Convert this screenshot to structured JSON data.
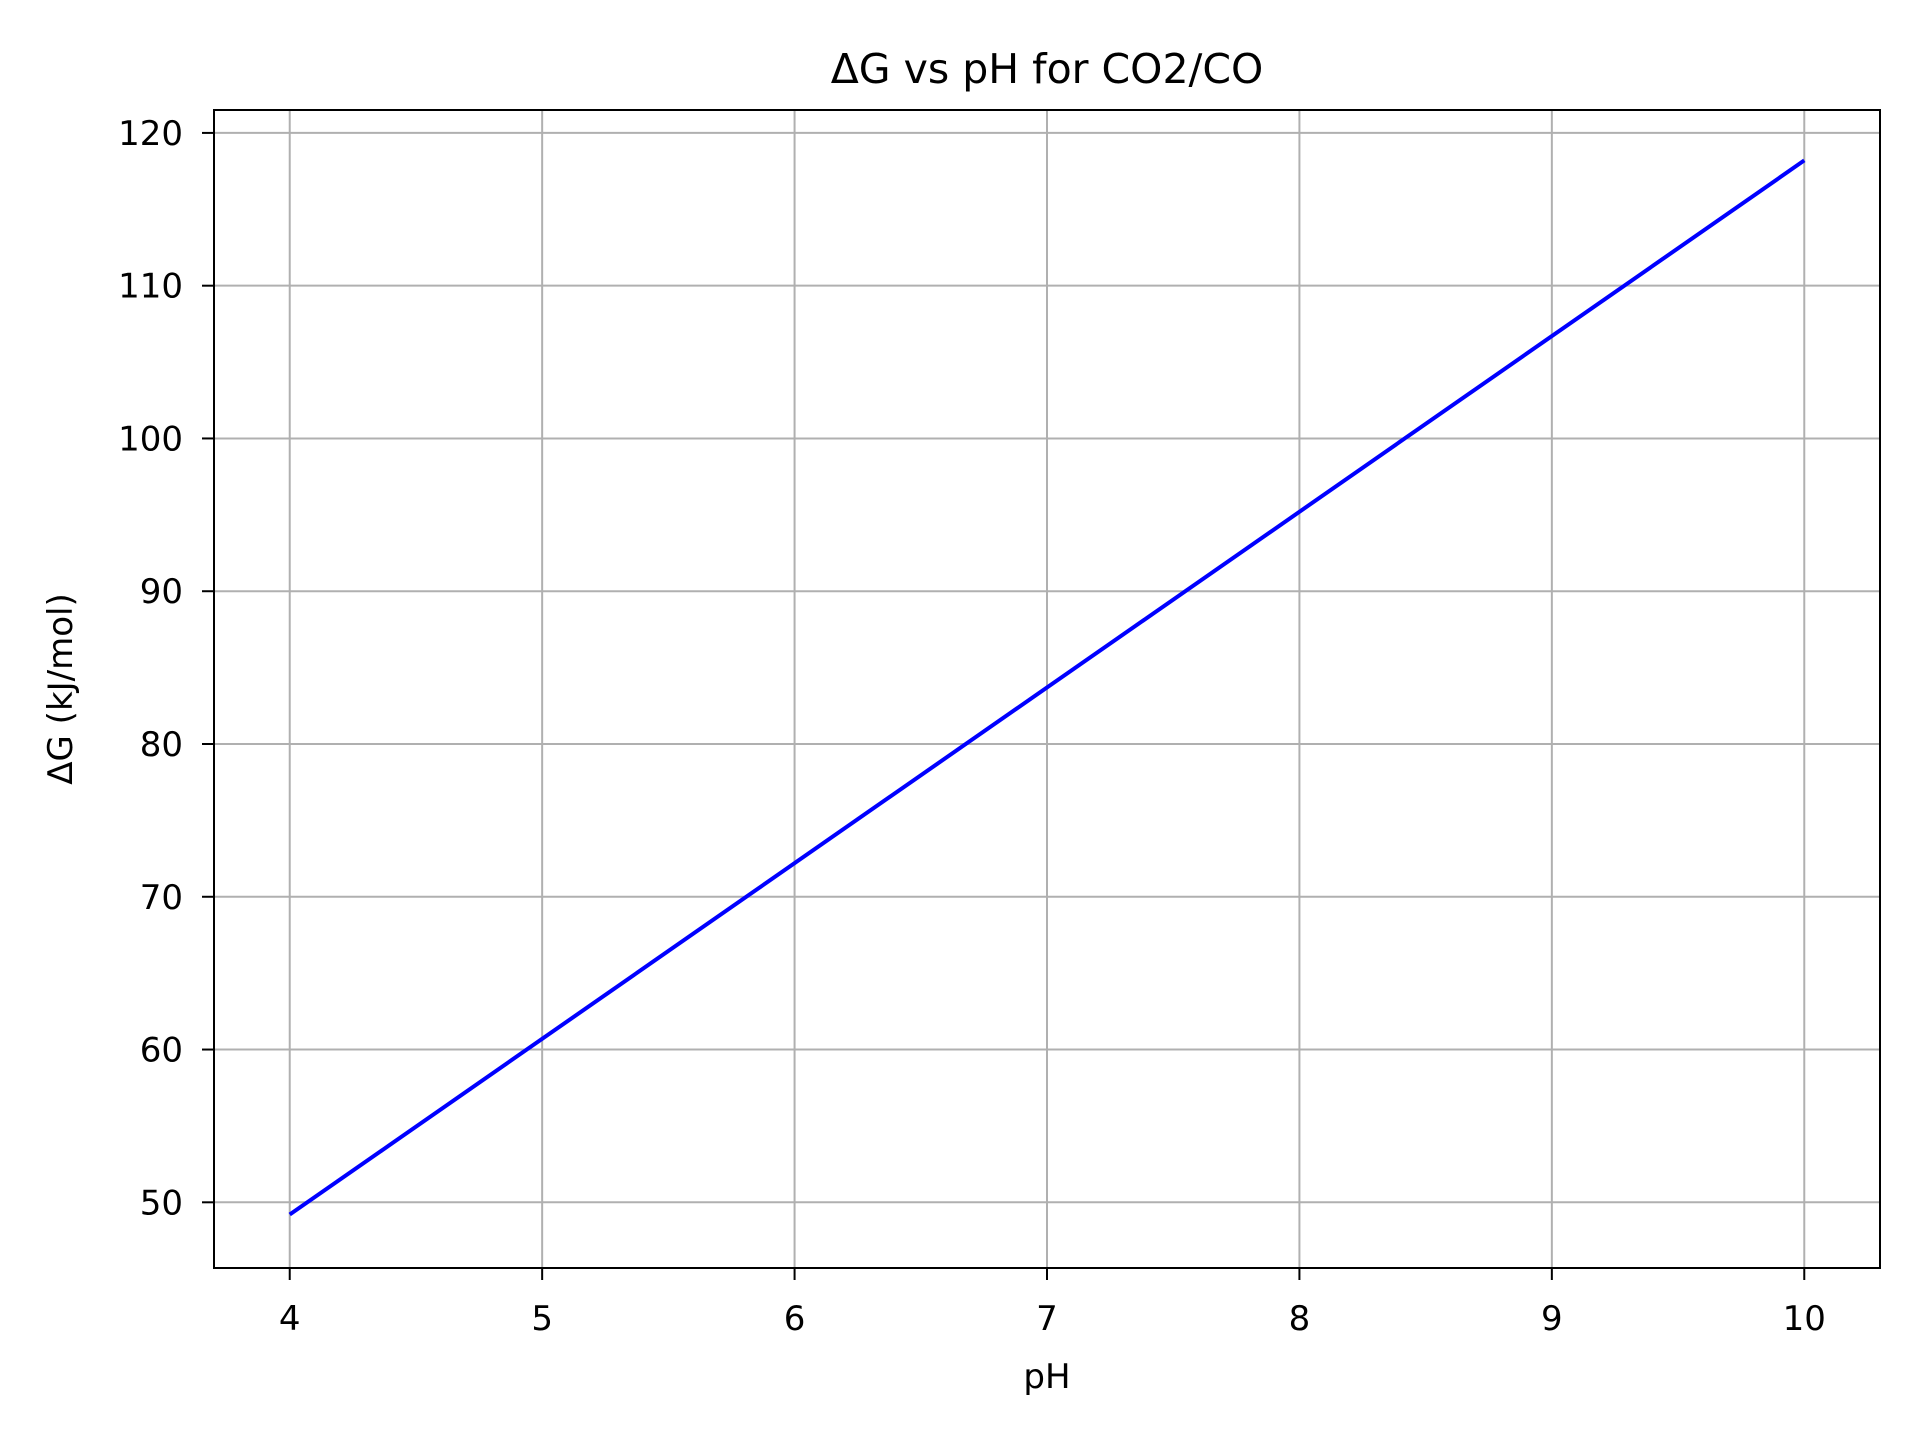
{
  "chart_data": {
    "type": "line",
    "title": "ΔG vs pH for CO2/CO",
    "xlabel": "pH",
    "ylabel": "ΔG (kJ/mol)",
    "xlim": [
      3.7,
      10.3
    ],
    "ylim": [
      45.7,
      121.5
    ],
    "x_ticks": [
      4,
      5,
      6,
      7,
      8,
      9,
      10
    ],
    "y_ticks": [
      50,
      60,
      70,
      80,
      90,
      100,
      110,
      120
    ],
    "grid": true,
    "series": [
      {
        "x": [
          4,
          10
        ],
        "y": [
          49.2,
          118.2
        ],
        "color": "#0000ff"
      }
    ],
    "colors": {
      "line": "#0000ff",
      "grid": "#b0b0b0",
      "axes": "#000000",
      "background": "#ffffff"
    }
  }
}
